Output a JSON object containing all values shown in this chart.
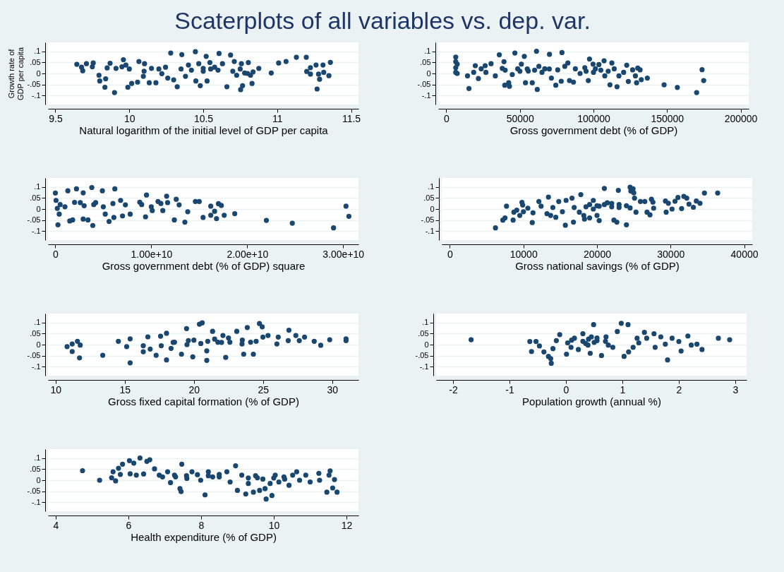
{
  "chart_data": [
    {
      "type": "scatter",
      "title": "Scaterplots of all variables vs. dep. var.",
      "ylabel": "Growth rate of GDP per capita",
      "xlabel": "Natural logarithm of the initial level of GDP per capita",
      "color": "#1a476f",
      "marker": "circle",
      "grid": "y",
      "xlim": [
        9.45,
        11.55
      ],
      "xticks": [
        9.5,
        10,
        10.5,
        11,
        11.5
      ],
      "ylim": [
        -0.14,
        0.14
      ],
      "yticks": [
        {
          "value": -0.1,
          "label": "-.1"
        },
        {
          "value": -0.05,
          "label": "-.05"
        },
        {
          "value": 0,
          "label": "0"
        },
        {
          "value": 0.05,
          "label": ".05"
        },
        {
          "value": 0.1,
          "label": ".1"
        }
      ],
      "x": [
        9.645,
        9.677,
        9.685,
        9.71,
        9.756,
        9.795,
        9.8,
        9.835,
        9.84,
        9.87,
        9.9,
        9.91,
        9.96,
        9.977,
        9.99,
        10.016,
        10.056,
        10.065,
        10.103,
        10.095,
        10.135,
        10.15,
        10.18,
        10.22,
        10.245,
        10.26,
        10.28,
        10.3,
        10.324,
        10.355,
        10.38,
        10.4,
        10.447,
        10.45,
        10.47,
        10.48,
        10.52,
        10.526,
        10.5,
        10.545,
        10.577,
        10.607,
        10.63,
        10.66,
        10.685,
        10.71,
        10.726,
        10.753,
        10.766,
        10.758,
        10.78,
        10.805,
        10.82,
        10.83,
        10.837,
        10.876,
        10.96,
        11.01,
        11.06,
        11.13,
        11.197,
        11.2,
        11.225,
        11.225,
        11.263,
        11.27,
        11.28,
        11.287,
        11.31,
        11.315,
        11.35,
        11.36,
        10.35,
        10.42,
        10.5,
        10.55,
        10.6,
        10.7,
        10.75,
        10.8,
        10.0,
        10.1,
        10.2,
        9.75,
        9.85,
        9.95
      ],
      "values": [
        0.041,
        0.028,
        0.012,
        0.044,
        0.047,
        -0.008,
        -0.034,
        -0.062,
        -0.024,
        0.046,
        -0.086,
        0.023,
        0.062,
        0.038,
        -0.062,
        -0.045,
        -0.039,
        0.054,
        0.044,
        -0.013,
        -0.042,
        0.023,
        -0.042,
        -0.001,
        0.028,
        -0.021,
        0.092,
        -0.029,
        -0.06,
        0.085,
        -0.013,
        0.038,
        0.098,
        -0.034,
        0.044,
        -0.055,
        0.077,
        -0.034,
        0.023,
        0.049,
        0.028,
        0.09,
        0.044,
        -0.06,
        0.083,
        0.054,
        -0.008,
        -0.073,
        -0.055,
        0.044,
        0.002,
        0.049,
        -0.008,
        -0.045,
        0.007,
        0.023,
        0.002,
        0.047,
        0.054,
        0.073,
        0.073,
        0.009,
        0.026,
        -0.003,
        0.038,
        -0.07,
        -0.003,
        -0.026,
        0.038,
        0.005,
        -0.01,
        0.05,
        0.02,
        0.015,
        0.01,
        0.02,
        0.015,
        0.01,
        0.02,
        0.0,
        0.02,
        0.01,
        0.02,
        0.03,
        0.025,
        0.03
      ]
    },
    {
      "type": "scatter",
      "xlabel": "Gross government debt (% of GDP)",
      "color": "#1a476f",
      "marker": "circle",
      "grid": "y",
      "xlim": [
        -5500,
        205500
      ],
      "xticks": [
        0,
        50000,
        100000,
        150000,
        200000
      ],
      "ylim": [
        -0.14,
        0.14
      ],
      "yticks": [
        {
          "value": -0.1,
          "label": "-.1"
        },
        {
          "value": -0.05,
          "label": "-.05"
        },
        {
          "value": 0,
          "label": "0"
        },
        {
          "value": 0.05,
          "label": ".05"
        },
        {
          "value": 0.1,
          "label": ".1"
        }
      ],
      "x": [
        6400,
        6400,
        7400,
        6400,
        6400,
        7400,
        14400,
        15400,
        18600,
        19700,
        21800,
        23700,
        26400,
        26900,
        30400,
        33300,
        36000,
        38000,
        39200,
        39700,
        42400,
        42900,
        44800,
        46600,
        48500,
        51000,
        53000,
        53800,
        55700,
        58400,
        61300,
        61800,
        62900,
        66900,
        70100,
        71400,
        74400,
        75700,
        78100,
        78600,
        80500,
        82600,
        83700,
        86400,
        87700,
        90900,
        94100,
        96500,
        97300,
        99700,
        101300,
        103700,
        107200,
        107700,
        111200,
        112500,
        114100,
        116000,
        117300,
        120500,
        122600,
        123700,
        126600,
        128500,
        129300,
        130100,
        131700,
        132500,
        136600,
        148000,
        157000,
        170100,
        173800,
        174900,
        40000,
        50000,
        55000,
        60000,
        65000,
        70000,
        95000,
        100000,
        105000,
        110000
      ],
      "values": [
        0.074,
        0.053,
        0.042,
        0.026,
        0.005,
        0,
        -0.011,
        -0.068,
        0.005,
        0.035,
        -0.023,
        0.021,
        0.035,
        0.005,
        0.044,
        -0.011,
        0.084,
        0.023,
        0.053,
        -0.053,
        -0.042,
        -0.058,
        -0.005,
        0.092,
        0.021,
        0.042,
        0.077,
        -0.042,
        0.011,
        -0.042,
        0.1,
        -0.072,
        0.032,
        0.021,
        0.086,
        -0.021,
        -0.053,
        0.016,
        -0.035,
        0.094,
        0.032,
        0.047,
        -0.032,
        -0.039,
        0.021,
        0,
        0.026,
        -0.032,
        0.065,
        0.042,
        0.021,
        0.04,
        0.057,
        -0.011,
        -0.051,
        0.047,
        0.021,
        -0.06,
        -0.011,
        0.005,
        0.037,
        -0.036,
        0.016,
        -0.011,
        -0.042,
        0.024,
        0.016,
        -0.028,
        -0.021,
        -0.051,
        -0.063,
        -0.086,
        0.017,
        -0.032,
        0.015,
        0.01,
        0.02,
        0.015,
        0.005,
        0.02,
        0.01,
        0.005,
        0.015,
        0.01
      ]
    },
    {
      "type": "scatter",
      "xlabel": "Gross government debt (% of GDP) square",
      "color": "#1a476f",
      "marker": "circle",
      "grid": "y",
      "xlim": [
        -770000000,
        31600000000
      ],
      "xticks": [
        0,
        {
          "value": 10000000000,
          "label": "1.00e+10"
        },
        {
          "value": 20000000000,
          "label": "2.00e+10"
        },
        {
          "value": 30000000000,
          "label": "3.00e+10"
        }
      ],
      "ylim": [
        -0.14,
        0.14
      ],
      "yticks": [
        {
          "value": -0.1,
          "label": "-.1"
        },
        {
          "value": -0.05,
          "label": "-.05"
        },
        {
          "value": 0,
          "label": "0"
        },
        {
          "value": 0.05,
          "label": ".05"
        },
        {
          "value": 0.1,
          "label": ".1"
        }
      ],
      "x": [
        0,
        70000000.0,
        200000000.0,
        400000000.0,
        270000000.0,
        1300000000.0,
        1500000000.0,
        1800000000.0,
        2200000000.0,
        2600000000.0,
        2900000000.0,
        2900000000.0,
        3400000000.0,
        3800000000.0,
        3900000000.0,
        4200000000.0,
        4900000000.0,
        5200000000.0,
        5600000000.0,
        6200000000.0,
        6100000000.0,
        6800000000.0,
        7000000000.0,
        7300000000.0,
        7800000000.0,
        8800000000.0,
        9400000000.0,
        9500000000.0,
        10100000000.0,
        10700000000.0,
        11200000000.0,
        11600000000.0,
        11700000000.0,
        12400000000.0,
        12600000000.0,
        12900000000.0,
        13500000000.0,
        13800000000.0,
        14600000000.0,
        15000000000.0,
        15400000000.0,
        16200000000.0,
        16200000000.0,
        16600000000.0,
        16800000000.0,
        17000000000.0,
        17300000000.0,
        17600000000.0,
        18700000000.0,
        22000000000.0,
        24700000000.0,
        29000000000.0,
        30300000000.0,
        30600000000.0,
        500000000.0,
        1000000000.0,
        2000000000.0,
        3000000000.0,
        4000000000.0,
        5000000000.0,
        6000000000.0,
        9000000000.0,
        10000000000.0,
        11000000000.0
      ],
      "values": [
        0.072,
        0.039,
        0.003,
        -0.023,
        -0.071,
        0.082,
        -0.054,
        -0.049,
        0.091,
        0.029,
        0.073,
        -0.045,
        -0.049,
        0.097,
        -0.074,
        0.029,
        0.082,
        -0.023,
        -0.056,
        0.091,
        -0.038,
        0.039,
        -0.031,
        0.019,
        -0.023,
        0.031,
        -0.035,
        0.063,
        -0.007,
        0.034,
        -0.007,
        0.058,
        0.029,
        -0.049,
        0.044,
        0.019,
        -0.059,
        -0.012,
        0.034,
        0.034,
        -0.038,
        0.013,
        -0.028,
        -0.01,
        -0.043,
        0.024,
        0.016,
        -0.028,
        -0.021,
        -0.051,
        -0.064,
        -0.085,
        0.013,
        -0.033,
        0.02,
        0.01,
        0.03,
        0.015,
        0.02,
        0.01,
        0.025,
        0.02,
        0.01,
        0.025
      ]
    },
    {
      "type": "scatter",
      "xlabel": "Gross national savings (% of GDP)",
      "color": "#1a476f",
      "marker": "circle",
      "grid": "y",
      "xlim": [
        -1100,
        41100
      ],
      "xticks": [
        0,
        10000,
        20000,
        30000,
        40000
      ],
      "ylim": [
        -0.14,
        0.14
      ],
      "yticks": [
        {
          "value": -0.1,
          "label": "-.1"
        },
        {
          "value": -0.05,
          "label": "-.05"
        },
        {
          "value": 0,
          "label": "0"
        },
        {
          "value": 0.05,
          "label": ".05"
        },
        {
          "value": 0.1,
          "label": ".1"
        }
      ],
      "x": [
        6200,
        7200,
        7500,
        7700,
        8600,
        8700,
        9100,
        9500,
        9800,
        9900,
        10000,
        10600,
        11200,
        11300,
        12100,
        12400,
        13200,
        13400,
        13700,
        14000,
        14400,
        14800,
        15300,
        15700,
        15800,
        16600,
        16800,
        16900,
        17600,
        17800,
        18200,
        18300,
        19000,
        19500,
        20000,
        20300,
        20300,
        21000,
        21400,
        22300,
        22700,
        22900,
        23000,
        24000,
        24500,
        24600,
        24900,
        25000,
        25100,
        25300,
        25900,
        26500,
        26800,
        27200,
        27400,
        27600,
        27700,
        29300,
        29400,
        29700,
        30200,
        30600,
        31000,
        31500,
        31800,
        32200,
        32500,
        33100,
        33500,
        34000,
        34600,
        36400,
        18500,
        19000,
        20000,
        21000,
        22000,
        23000,
        24000,
        22000,
        19500,
        24500
      ],
      "values": [
        -0.085,
        -0.05,
        -0.04,
        0.013,
        -0.05,
        -0.014,
        -0.005,
        -0.029,
        0.03,
        0.018,
        -0.012,
        0.004,
        -0.061,
        -0.017,
        0.034,
        0.013,
        -0.021,
        0.054,
        -0.029,
        0.007,
        -0.037,
        0.034,
        -0.012,
        -0.073,
        0.039,
        0.049,
        -0.059,
        0.007,
        -0.014,
        0.065,
        -0.029,
        -0.045,
        -0.04,
        0.039,
        -0.029,
        0.013,
        -0.052,
        0.093,
        0.028,
        -0.05,
        -0.059,
        0.084,
        0.007,
        -0.071,
        0.098,
        0.081,
        0.091,
        0.073,
        0.049,
        -0.014,
        0.034,
        0.034,
        -0.014,
        -0.026,
        0.044,
        0.031,
        0.004,
        0.036,
        -0.014,
        0.026,
        0,
        0.035,
        0.052,
        0.002,
        0.057,
        0.049,
        0.022,
        0.008,
        0.036,
        0.026,
        0.072,
        0.072,
        0.01,
        0.02,
        0.015,
        0.02,
        0.01,
        0.02,
        0.015,
        0.025,
        0.0,
        0.005
      ]
    },
    {
      "type": "scatter",
      "xlabel": "Gross fixed capital formation (% of GDP)",
      "color": "#1a476f",
      "marker": "circle",
      "grid": "y",
      "xlim": [
        9.45,
        31.9
      ],
      "xticks": [
        10,
        15,
        20,
        25,
        30
      ],
      "ylim": [
        -0.14,
        0.14
      ],
      "yticks": [
        {
          "value": -0.1,
          "label": "-.1"
        },
        {
          "value": -0.05,
          "label": "-.05"
        },
        {
          "value": 0,
          "label": "0"
        },
        {
          "value": 0.05,
          "label": ".05"
        },
        {
          "value": 0.1,
          "label": ".1"
        }
      ],
      "x": [
        10.83,
        11.2,
        11.2,
        11.58,
        11.78,
        11.73,
        13.41,
        14.54,
        15.14,
        15.39,
        15.39,
        16.34,
        16.34,
        16.67,
        16.84,
        17.27,
        17.59,
        17.64,
        18.02,
        18.02,
        18.35,
        18.6,
        19.1,
        19.47,
        19.6,
        19.92,
        20.4,
        20.6,
        20.93,
        20.93,
        21.35,
        21.73,
        22.1,
        22.3,
        22.6,
        23.1,
        23.48,
        23.6,
        23.86,
        24.1,
        24.3,
        24.74,
        24.94,
        24.99,
        25.36,
        26.0,
        26.1,
        26.87,
        26.82,
        27.37,
        27.62,
        28.0,
        28.7,
        29.17,
        29.82,
        31.0,
        31.0,
        20,
        21,
        21.5,
        22,
        20.5,
        22.5,
        23.5,
        19.5,
        24.5,
        18.5
      ],
      "values": [
        -0.009,
        0.003,
        -0.031,
        0.015,
        -0.002,
        -0.06,
        -0.048,
        0.015,
        -0.009,
        -0.082,
        0.026,
        -0.005,
        -0.032,
        0.035,
        -0.02,
        -0.048,
        0.038,
        -0.005,
        0.051,
        -0.069,
        -0.017,
        0.011,
        -0.043,
        0.072,
        0.018,
        -0.055,
        0.092,
        0.098,
        -0.028,
        -0.071,
        0.06,
        0.011,
        0.041,
        -0.058,
        0.011,
        0.06,
        0.003,
        -0.043,
        0.077,
        0.011,
        -0.043,
        0.095,
        0.08,
        0.034,
        0.041,
        0.003,
        0.034,
        0.065,
        0.018,
        0.041,
        0.018,
        0.034,
        0.015,
        -0.003,
        0.022,
        0.026,
        0.018,
        0.02,
        0.015,
        0.025,
        0.01,
        0.005,
        0.03,
        0.02,
        0.0,
        0.015,
        0.01
      ]
    },
    {
      "type": "scatter",
      "xlabel": "Population growth (annual %)",
      "color": "#1a476f",
      "marker": "circle",
      "grid": "y",
      "xlim": [
        -2.3,
        3.2
      ],
      "xticks": [
        -2,
        -1,
        0,
        1,
        2,
        3
      ],
      "ylim": [
        -0.14,
        0.14
      ],
      "yticks": [
        {
          "value": -0.1,
          "label": "-.1"
        },
        {
          "value": -0.05,
          "label": "-.05"
        },
        {
          "value": 0,
          "label": "0"
        },
        {
          "value": 0.05,
          "label": ".05"
        },
        {
          "value": 0.1,
          "label": ".1"
        }
      ],
      "x": [
        -1.68,
        -0.64,
        -0.61,
        -0.53,
        -0.47,
        -0.39,
        -0.31,
        -0.27,
        -0.26,
        -0.23,
        -0.17,
        -0.11,
        0.01,
        0.03,
        0.09,
        0.15,
        0.22,
        0.3,
        0.39,
        0.43,
        0.49,
        0.55,
        0.63,
        0.71,
        0.75,
        0.83,
        0.91,
        0.98,
        1.03,
        1.1,
        1.11,
        1.19,
        1.26,
        1.29,
        1.39,
        1.43,
        1.56,
        1.58,
        1.68,
        1.76,
        1.8,
        1.88,
        2.0,
        2.04,
        2.16,
        2.22,
        2.32,
        2.41,
        2.7,
        2.9,
        0.1,
        0.3,
        0.4,
        0.5,
        0.7,
        0.35,
        0.45,
        0.55
      ],
      "values": [
        0.022,
        0.014,
        -0.031,
        0.014,
        -0.006,
        -0.033,
        -0.053,
        -0.063,
        -0.084,
        -0.018,
        0.018,
        0.045,
        -0.043,
        0.008,
        -0.012,
        0.029,
        -0.022,
        0.049,
        -0.002,
        -0.039,
        0.09,
        0.018,
        -0.049,
        0.035,
        -0.002,
        -0.012,
        0.059,
        0.096,
        -0.053,
        0.09,
        -0.033,
        -0.012,
        0.029,
        0.008,
        0.055,
        0.029,
        0.049,
        -0.012,
        0.035,
        0.002,
        -0.069,
        0.029,
        0.014,
        -0.029,
        0.039,
        -0.002,
        0.002,
        -0.022,
        0.029,
        0.022,
        0.02,
        0.015,
        0.025,
        0.01,
        0.015,
        0.005,
        0.035,
        0.03
      ]
    },
    {
      "type": "scatter",
      "xlabel": "Health expenditure (% of GDP)",
      "color": "#1a476f",
      "marker": "circle",
      "grid": "y",
      "xlim": [
        3.79,
        12.33
      ],
      "xticks": [
        4,
        6,
        8,
        10,
        12
      ],
      "ylim": [
        -0.14,
        0.14
      ],
      "yticks": [
        {
          "value": -0.1,
          "label": "-.1"
        },
        {
          "value": -0.05,
          "label": "-.05"
        },
        {
          "value": 0,
          "label": "0"
        },
        {
          "value": 0.05,
          "label": ".05"
        },
        {
          "value": 0.1,
          "label": ".1"
        }
      ],
      "x": [
        4.74,
        5.21,
        5.54,
        5.58,
        5.65,
        5.73,
        5.78,
        5.84,
        6.03,
        6.05,
        6.15,
        6.22,
        6.32,
        6.42,
        6.51,
        6.59,
        6.72,
        6.85,
        6.94,
        7.08,
        7.16,
        7.27,
        7.42,
        7.45,
        7.47,
        7.61,
        7.75,
        7.99,
        8.11,
        8.2,
        8.32,
        8.5,
        8.71,
        8.8,
        8.95,
        9.0,
        9.12,
        9.23,
        9.3,
        9.44,
        9.55,
        9.61,
        9.76,
        9.79,
        9.9,
        9.95,
        10.04,
        10.14,
        10.28,
        10.42,
        10.52,
        10.63,
        10.71,
        10.88,
        11.0,
        11.24,
        11.26,
        11.46,
        11.52,
        11.55,
        11.62,
        11.67,
        11.74,
        7.3,
        7.6,
        7.9,
        8.2,
        8.5,
        9.3,
        9.5,
        9.7,
        10,
        10.3
      ],
      "values": [
        0.043,
        0,
        0.011,
        0.038,
        -0.003,
        0.054,
        0.026,
        0.072,
        0.088,
        0.029,
        0.077,
        0.023,
        0.1,
        0.028,
        0.085,
        0.092,
        0.051,
        0.023,
        0.015,
        0.038,
        -0.011,
        0.023,
        -0.038,
        -0.051,
        0.072,
        0.008,
        0.038,
        0,
        -0.066,
        0.038,
        0.015,
        0.026,
        0.038,
        -0.008,
        0.065,
        -0.046,
        0.023,
        -0.062,
        -0.015,
        -0.054,
        0.011,
        -0.046,
        -0.038,
        -0.085,
        -0.015,
        -0.069,
        0.023,
        -0.008,
        0.015,
        -0.023,
        0.023,
        0.038,
        0,
        0.023,
        -0.008,
        0.031,
        0,
        -0.054,
        0.023,
        0.042,
        -0.035,
        0.003,
        -0.054,
        0.015,
        0.02,
        0.025,
        0.02,
        0.015,
        0.01,
        0.02,
        0.005,
        0.01,
        0.005
      ]
    }
  ]
}
